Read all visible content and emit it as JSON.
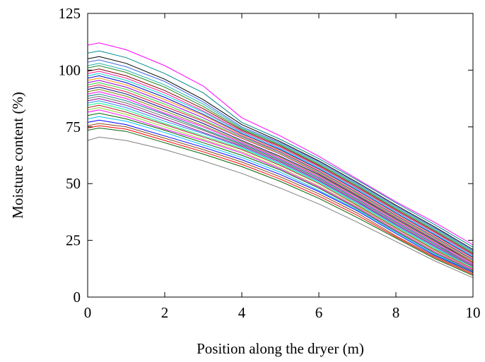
{
  "chart_data": {
    "type": "line",
    "title": "",
    "xlabel": "Position along the dryer (m)",
    "ylabel": "Moisture content (%)",
    "xlim": [
      0,
      10
    ],
    "ylim": [
      0,
      125
    ],
    "xticks": [
      "0",
      "2",
      "4",
      "6",
      "8",
      "10"
    ],
    "yticks": [
      "0",
      "25",
      "50",
      "75",
      "100",
      "125"
    ],
    "grid": false,
    "legend": "none",
    "x": [
      0.0,
      0.3,
      1.0,
      2.0,
      3.0,
      4.0,
      5.0,
      6.0,
      7.0,
      8.0,
      9.0,
      10.0
    ],
    "series": [
      {
        "values": [
          111.0,
          112.0,
          109.0,
          102.0,
          93.0,
          79.0,
          71.0,
          62.0,
          52.0,
          42.0,
          33.0,
          23.0
        ],
        "color": "#ff00ff"
      },
      {
        "values": [
          107.5,
          108.5,
          105.5,
          98.5,
          90.0,
          77.0,
          69.5,
          61.0,
          51.5,
          41.5,
          32.0,
          22.0
        ],
        "color": "#008b8b"
      },
      {
        "values": [
          105.0,
          106.0,
          103.0,
          96.0,
          87.0,
          76.0,
          68.5,
          60.0,
          50.5,
          40.5,
          31.0,
          21.0
        ],
        "color": "#000000"
      },
      {
        "values": [
          103.5,
          104.5,
          101.5,
          95.0,
          86.0,
          75.0,
          68.0,
          59.5,
          50.0,
          40.0,
          30.5,
          20.5
        ],
        "color": "#4169e1"
      },
      {
        "values": [
          102.0,
          103.0,
          100.0,
          93.5,
          85.0,
          74.5,
          67.5,
          59.0,
          49.5,
          39.5,
          30.0,
          20.0
        ],
        "color": "#20b2aa"
      },
      {
        "values": [
          101.0,
          102.0,
          99.0,
          92.5,
          84.0,
          74.0,
          67.0,
          58.5,
          49.0,
          39.0,
          29.5,
          19.5
        ],
        "color": "#228b22"
      },
      {
        "values": [
          99.5,
          100.5,
          97.5,
          91.0,
          83.0,
          73.5,
          66.5,
          58.0,
          48.5,
          38.5,
          29.0,
          19.0
        ],
        "color": "#800000"
      },
      {
        "values": [
          98.5,
          99.5,
          96.5,
          90.0,
          82.0,
          73.0,
          66.0,
          57.5,
          48.0,
          38.0,
          28.5,
          18.5
        ],
        "color": "#ff1493"
      },
      {
        "values": [
          97.5,
          98.5,
          95.5,
          89.0,
          81.5,
          72.5,
          65.5,
          57.0,
          47.5,
          37.5,
          28.0,
          18.0
        ],
        "color": "#00ced1"
      },
      {
        "values": [
          96.5,
          97.5,
          94.5,
          88.0,
          80.5,
          72.0,
          65.0,
          56.5,
          47.0,
          37.0,
          27.5,
          17.5
        ],
        "color": "#0000cd"
      },
      {
        "values": [
          95.5,
          96.5,
          93.5,
          87.0,
          80.0,
          71.5,
          64.5,
          56.0,
          46.5,
          36.5,
          27.0,
          17.0
        ],
        "color": "#ff8c00"
      },
      {
        "values": [
          94.5,
          95.5,
          92.5,
          86.0,
          79.0,
          71.0,
          64.0,
          55.5,
          46.0,
          36.0,
          26.5,
          16.5
        ],
        "color": "#9400d3"
      },
      {
        "values": [
          93.5,
          94.5,
          91.5,
          85.0,
          78.0,
          70.5,
          63.5,
          55.0,
          45.5,
          35.5,
          26.0,
          16.0
        ],
        "color": "#32cd32"
      },
      {
        "values": [
          92.5,
          93.5,
          90.5,
          84.0,
          77.5,
          70.0,
          63.0,
          54.5,
          45.0,
          35.0,
          25.5,
          15.5
        ],
        "color": "#dc143c"
      },
      {
        "values": [
          91.5,
          92.5,
          89.5,
          83.0,
          76.5,
          69.0,
          62.0,
          54.0,
          44.5,
          34.5,
          25.0,
          15.0
        ],
        "color": "#000080"
      },
      {
        "values": [
          90.5,
          91.5,
          88.5,
          82.0,
          75.5,
          68.5,
          61.5,
          53.5,
          44.0,
          34.0,
          24.5,
          15.0
        ],
        "color": "#808000"
      },
      {
        "values": [
          89.5,
          90.5,
          87.5,
          81.0,
          75.0,
          68.0,
          61.0,
          53.0,
          43.5,
          33.5,
          24.0,
          14.5
        ],
        "color": "#ff00ff"
      },
      {
        "values": [
          88.5,
          89.5,
          86.5,
          80.5,
          74.0,
          67.5,
          60.5,
          52.5,
          43.0,
          33.0,
          23.5,
          14.0
        ],
        "color": "#008080"
      },
      {
        "values": [
          87.5,
          88.5,
          85.5,
          79.5,
          73.5,
          67.0,
          60.0,
          52.0,
          42.5,
          32.5,
          23.0,
          14.0
        ],
        "color": "#696969"
      },
      {
        "values": [
          86.5,
          87.5,
          84.5,
          78.5,
          72.5,
          66.5,
          59.5,
          51.5,
          42.0,
          32.0,
          22.5,
          13.5
        ],
        "color": "#8b008b"
      },
      {
        "values": [
          85.5,
          86.5,
          83.5,
          77.5,
          72.0,
          66.0,
          59.0,
          51.0,
          41.5,
          31.5,
          22.0,
          13.0
        ],
        "color": "#1e90ff"
      },
      {
        "values": [
          84.5,
          85.5,
          82.5,
          76.5,
          71.0,
          65.5,
          58.5,
          50.5,
          41.0,
          31.0,
          21.5,
          13.0
        ],
        "color": "#00ff7f"
      },
      {
        "values": [
          83.5,
          84.5,
          81.5,
          76.0,
          70.5,
          65.0,
          58.0,
          50.0,
          40.5,
          30.5,
          21.0,
          12.5
        ],
        "color": "#b22222"
      },
      {
        "values": [
          82.5,
          83.5,
          80.5,
          75.0,
          69.5,
          64.0,
          57.0,
          49.0,
          40.0,
          30.0,
          20.5,
          12.0
        ],
        "color": "#9acd32"
      },
      {
        "values": [
          81.5,
          82.5,
          79.5,
          74.0,
          69.0,
          63.5,
          56.5,
          48.5,
          39.5,
          29.5,
          20.0,
          12.0
        ],
        "color": "#ff00ff"
      },
      {
        "values": [
          80.0,
          81.0,
          78.5,
          73.5,
          68.0,
          62.5,
          56.0,
          48.0,
          39.0,
          29.0,
          19.5,
          11.5
        ],
        "color": "#006400"
      },
      {
        "values": [
          78.5,
          79.5,
          77.5,
          72.5,
          67.0,
          61.5,
          55.0,
          47.0,
          38.5,
          28.5,
          19.0,
          11.0
        ],
        "color": "#00bfff"
      },
      {
        "values": [
          77.0,
          78.0,
          76.0,
          71.0,
          66.0,
          60.5,
          54.0,
          46.5,
          38.0,
          28.0,
          18.5,
          11.0
        ],
        "color": "#0000ff"
      },
      {
        "values": [
          75.5,
          76.5,
          75.0,
          70.0,
          65.0,
          59.5,
          53.0,
          45.5,
          37.0,
          27.0,
          18.0,
          10.5
        ],
        "color": "#8b4513"
      },
      {
        "values": [
          74.5,
          75.5,
          74.0,
          69.0,
          64.0,
          58.5,
          52.0,
          44.5,
          36.0,
          26.5,
          17.5,
          10.0
        ],
        "color": "#ff0000"
      },
      {
        "values": [
          73.5,
          74.5,
          73.0,
          68.0,
          63.0,
          57.5,
          51.0,
          43.5,
          35.0,
          26.0,
          17.0,
          9.5
        ],
        "color": "#006400"
      },
      {
        "values": [
          69.0,
          70.5,
          69.0,
          65.0,
          60.0,
          54.5,
          48.0,
          41.0,
          33.0,
          24.5,
          16.0,
          8.5
        ],
        "color": "#7f7f7f"
      }
    ]
  }
}
